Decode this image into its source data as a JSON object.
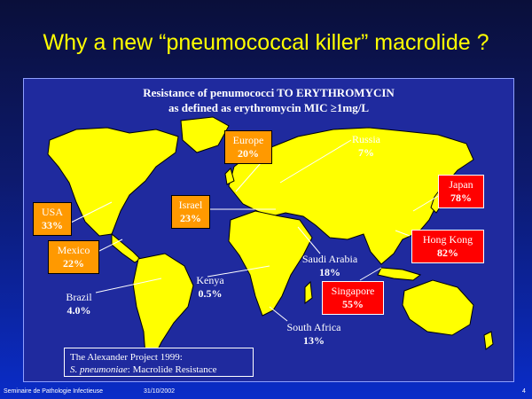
{
  "slide": {
    "title": "Why a new “pneumococcal killer” macrolide ?",
    "subtitle_line1": "Resistance of penumococci TO ERYTHROMYCIN",
    "subtitle_line2": "as defined as erythromycin MIC ≥1mg/L",
    "source_line1": "The Alexander Project 1999:",
    "source_line2_italic": "S. pneumoniae",
    "source_line2_rest": ":  Macrolide Resistance",
    "footer_left": "Seminaire de Pathologie Infectieuse",
    "footer_date": "31/10/2002",
    "page_number": "4"
  },
  "countries": [
    {
      "key": "russia",
      "name": "Russia",
      "value": "7%",
      "style": "plain"
    },
    {
      "key": "europe",
      "name": "Europe",
      "value": "20%",
      "style": "orange"
    },
    {
      "key": "israel",
      "name": "Israel",
      "value": "23%",
      "style": "orange"
    },
    {
      "key": "usa",
      "name": "USA",
      "value": "33%",
      "style": "orange"
    },
    {
      "key": "mexico",
      "name": "Mexico",
      "value": "22%",
      "style": "orange"
    },
    {
      "key": "brazil",
      "name": "Brazil",
      "value": "4.0%",
      "style": "plain"
    },
    {
      "key": "kenya",
      "name": "Kenya",
      "value": "0.5%",
      "style": "plain"
    },
    {
      "key": "saudi",
      "name": "Saudi Arabia",
      "value": "18%",
      "style": "plain"
    },
    {
      "key": "south_africa",
      "name": "South Africa",
      "value": "13%",
      "style": "plain"
    },
    {
      "key": "japan",
      "name": "Japan",
      "value": "78%",
      "style": "red"
    },
    {
      "key": "hongkong",
      "name": "Hong Kong",
      "value": "82%",
      "style": "red"
    },
    {
      "key": "singapore",
      "name": "Singapore",
      "value": "55%",
      "style": "red"
    }
  ],
  "colors": {
    "title": "#ffff00",
    "land": "#ffff00",
    "orange_box": "#ff9900",
    "red_box": "#ff0000",
    "panel": "#1f2a9e"
  }
}
